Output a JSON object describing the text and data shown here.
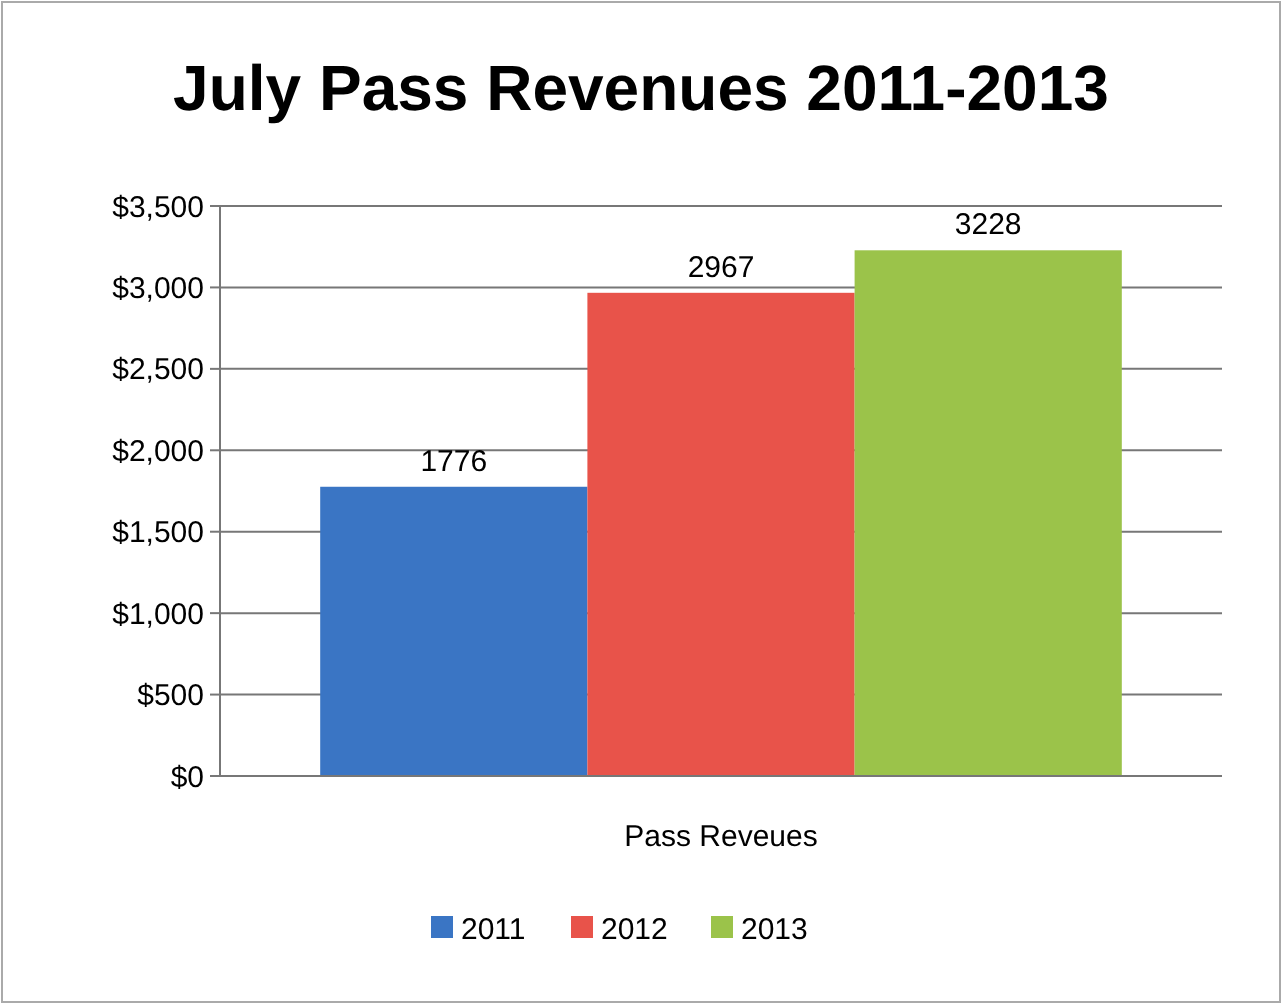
{
  "chart_data": {
    "type": "bar",
    "title": "July Pass Revenues 2011-2013",
    "categories": [
      "Pass Reveues"
    ],
    "series": [
      {
        "name": "2011",
        "color": "#3a75c4",
        "values": [
          1776
        ]
      },
      {
        "name": "2012",
        "color": "#e8534a",
        "values": [
          2967
        ]
      },
      {
        "name": "2013",
        "color": "#9bc34a",
        "values": [
          3228
        ]
      }
    ],
    "ylim": [
      0,
      3500
    ],
    "yticks": [
      {
        "value": 0,
        "label": "$0"
      },
      {
        "value": 500,
        "label": "$500"
      },
      {
        "value": 1000,
        "label": "$1,000"
      },
      {
        "value": 1500,
        "label": "$1,500"
      },
      {
        "value": 2000,
        "label": "$2,000"
      },
      {
        "value": 2500,
        "label": "$2,500"
      },
      {
        "value": 3000,
        "label": "$3,000"
      },
      {
        "value": 3500,
        "label": "$3,500"
      }
    ],
    "grid": "y",
    "legend": "bottom",
    "data_labels": true
  }
}
